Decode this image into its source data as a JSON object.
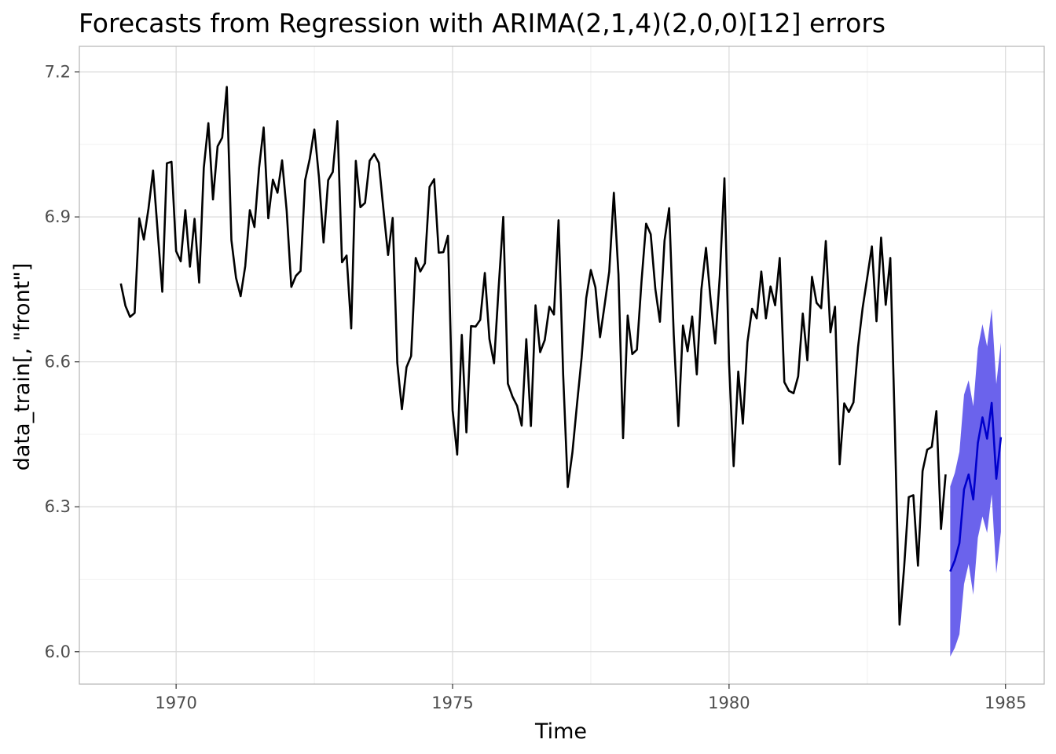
{
  "chart_data": {
    "type": "line",
    "title": "Forecasts from Regression with ARIMA(2,1,4)(2,0,0)[12] errors",
    "xlabel": "Time",
    "ylabel": "data_train[, \"front\"]",
    "xlim": [
      1968.25,
      1985.7
    ],
    "ylim": [
      5.933,
      7.253
    ],
    "x_ticks": [
      1970,
      1975,
      1980,
      1985
    ],
    "x_tick_labels": [
      "1970",
      "1975",
      "1980",
      "1985"
    ],
    "y_ticks": [
      6.0,
      6.3,
      6.6,
      6.9,
      7.2
    ],
    "y_tick_labels": [
      "6.0",
      "6.3",
      "6.6",
      "6.9",
      "7.2"
    ],
    "grid": true,
    "legend": "none",
    "colors": {
      "history": "#000000",
      "forecast": "#0000cc",
      "interval": "#6b63ec"
    },
    "history_start": "1969-01",
    "history": [
      6.762,
      6.716,
      6.693,
      6.701,
      6.897,
      6.853,
      6.917,
      6.996,
      6.869,
      6.745,
      7.011,
      7.014,
      6.829,
      6.808,
      6.914,
      6.797,
      6.896,
      6.764,
      7.001,
      7.094,
      6.936,
      7.046,
      7.064,
      7.169,
      6.852,
      6.774,
      6.736,
      6.798,
      6.914,
      6.879,
      7.001,
      7.085,
      6.897,
      6.977,
      6.95,
      7.017,
      6.912,
      6.755,
      6.778,
      6.788,
      6.976,
      7.02,
      7.081,
      6.982,
      6.847,
      6.976,
      6.993,
      7.098,
      6.806,
      6.82,
      6.669,
      7.016,
      6.92,
      6.929,
      7.016,
      7.03,
      7.012,
      6.915,
      6.821,
      6.898,
      6.598,
      6.502,
      6.589,
      6.612,
      6.815,
      6.787,
      6.804,
      6.962,
      6.978,
      6.826,
      6.827,
      6.861,
      6.5,
      6.408,
      6.656,
      6.454,
      6.674,
      6.673,
      6.687,
      6.784,
      6.647,
      6.597,
      6.754,
      6.9,
      6.555,
      6.528,
      6.509,
      6.468,
      6.647,
      6.467,
      6.717,
      6.62,
      6.645,
      6.714,
      6.698,
      6.893,
      6.573,
      6.341,
      6.412,
      6.512,
      6.608,
      6.732,
      6.79,
      6.754,
      6.651,
      6.718,
      6.787,
      6.95,
      6.781,
      6.442,
      6.696,
      6.616,
      6.625,
      6.766,
      6.886,
      6.864,
      6.751,
      6.683,
      6.851,
      6.918,
      6.656,
      6.467,
      6.675,
      6.622,
      6.694,
      6.574,
      6.75,
      6.836,
      6.728,
      6.638,
      6.778,
      6.98,
      6.597,
      6.384,
      6.58,
      6.472,
      6.641,
      6.71,
      6.69,
      6.787,
      6.69,
      6.756,
      6.717,
      6.815,
      6.558,
      6.54,
      6.535,
      6.57,
      6.7,
      6.603,
      6.776,
      6.722,
      6.711,
      6.85,
      6.661,
      6.714,
      6.388,
      6.514,
      6.496,
      6.516,
      6.631,
      6.712,
      6.775,
      6.839,
      6.684,
      6.857,
      6.718,
      6.815,
      6.458,
      6.056,
      6.175,
      6.32,
      6.324,
      6.178,
      6.374,
      6.418,
      6.424,
      6.498,
      6.254,
      6.367
    ],
    "forecast_start": "1984-01",
    "forecast": [
      6.166,
      6.189,
      6.225,
      6.336,
      6.367,
      6.315,
      6.432,
      6.485,
      6.441,
      6.515,
      6.358,
      6.444
    ],
    "lower_80": [
      6.092,
      6.108,
      6.132,
      6.234,
      6.262,
      6.21,
      6.328,
      6.382,
      6.34,
      6.415,
      6.262,
      6.348
    ],
    "upper_80": [
      6.24,
      6.27,
      6.318,
      6.438,
      6.472,
      6.42,
      6.536,
      6.588,
      6.542,
      6.615,
      6.454,
      6.54
    ],
    "lower_95": [
      5.99,
      6.008,
      6.036,
      6.14,
      6.182,
      6.118,
      6.236,
      6.28,
      6.246,
      6.326,
      6.162,
      6.248
    ],
    "upper_95": [
      6.342,
      6.37,
      6.414,
      6.532,
      6.562,
      6.508,
      6.628,
      6.678,
      6.632,
      6.71,
      6.554,
      6.64
    ]
  }
}
